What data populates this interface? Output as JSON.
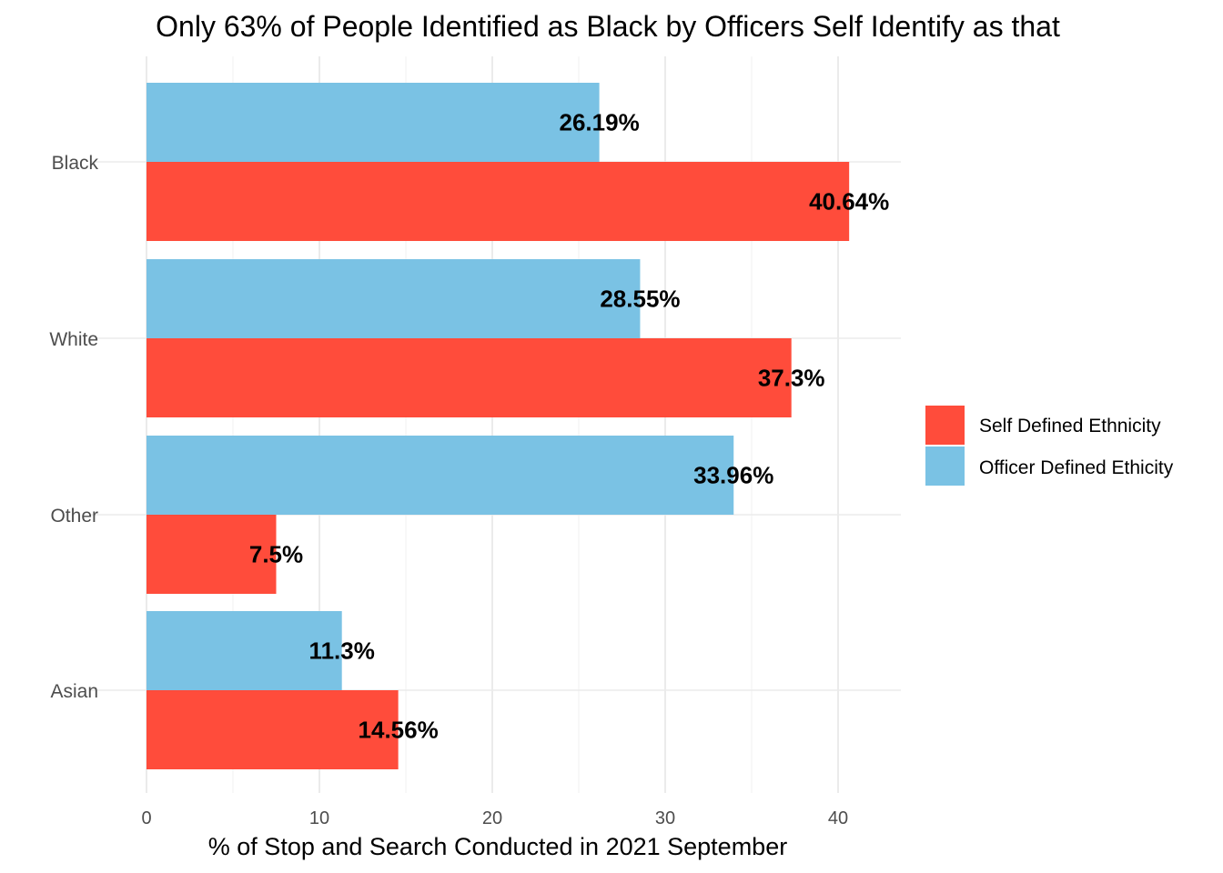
{
  "chart_data": {
    "type": "bar",
    "orientation": "horizontal",
    "title": "Only 63% of People Identified as Black by Officers Self Identify as that",
    "xlabel": "% of Stop and Search Conducted in 2021 September",
    "ylabel": "",
    "xlim": [
      0,
      42
    ],
    "xticks": [
      "0",
      "10",
      "20",
      "30",
      "40"
    ],
    "grid": true,
    "legend_position": "right",
    "categories": [
      "Black",
      "White",
      "Other",
      "Asian"
    ],
    "series": [
      {
        "name": "Officer Defined Ethicity",
        "color": "#7AC2E4",
        "values": [
          26.19,
          28.55,
          33.96,
          11.3
        ],
        "labels": [
          "26.19%",
          "28.55%",
          "33.96%",
          "11.3%"
        ]
      },
      {
        "name": "Self Defined Ethnicity",
        "color": "#FF4C3B",
        "values": [
          40.64,
          37.3,
          7.5,
          14.56
        ],
        "labels": [
          "40.64%",
          "37.3%",
          "7.5%",
          "14.56%"
        ]
      }
    ],
    "legend": [
      "Self Defined Ethnicity",
      "Officer Defined Ethicity"
    ]
  }
}
